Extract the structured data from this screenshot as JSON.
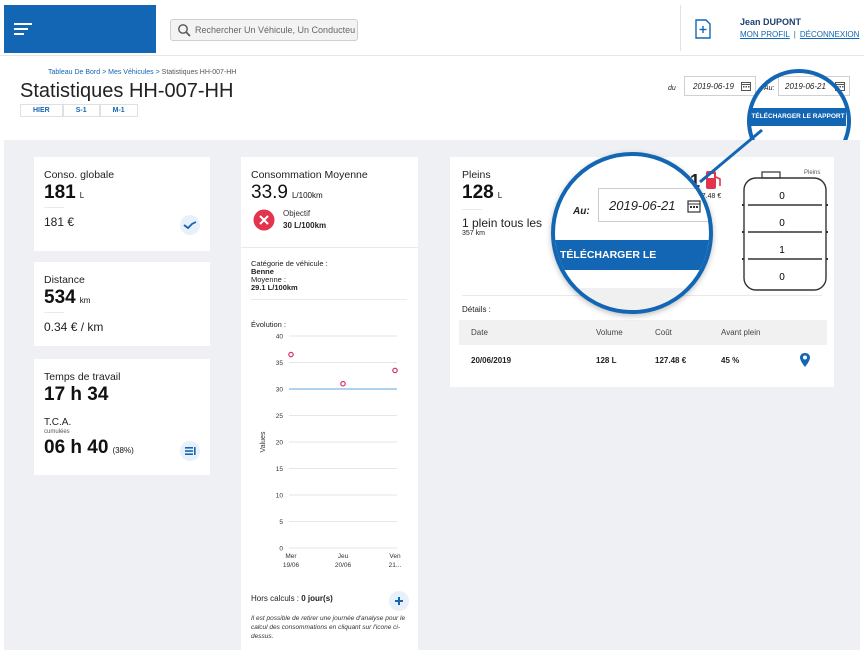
{
  "header": {
    "search_placeholder": "Rechercher Un Véhicule, Un Conducteur",
    "user_name": "Jean DUPONT",
    "profile_link": "MON PROFIL",
    "separator": "|",
    "logout_link": "DÉCONNEXION"
  },
  "breadcrumb": {
    "home": "Tableau De Bord",
    "sep1": " > ",
    "vehicles": "Mes Véhicules",
    "sep2": " > ",
    "current": "Statistiques HH-007-HH"
  },
  "page_title": "Statistiques HH-007-HH",
  "period_tabs": [
    "HIER",
    "S-1",
    "M-1"
  ],
  "dates": {
    "from_label": "du",
    "from_value": "2019-06-19",
    "to_label": "Au:",
    "to_value": "2019-06-21"
  },
  "download_label": "TÉLÉCHARGER LE RAPPORT",
  "conso": {
    "title": "Conso. globale",
    "value": "181",
    "unit": "L",
    "cost": "181 €"
  },
  "distance": {
    "title": "Distance",
    "value": "534",
    "unit": "km",
    "cost_per_km": "0.34 € / km"
  },
  "temps": {
    "title": "Temps de travail",
    "value": "17 h 34",
    "tca_label": "T.C.A.",
    "tca_sub": "cumulées",
    "tca_value": "06 h 40",
    "tca_pct": "(38%)"
  },
  "moyenne": {
    "title": "Consommation Moyenne",
    "value": "33.9",
    "unit": "L/100km",
    "objective_label": "Objectif",
    "objective_value": "30 L/100km",
    "category_label": "Catégorie de véhicule :",
    "category_value": "Benne",
    "avg_label": "Moyenne :",
    "avg_value": "29.1 L/100km",
    "evolution_label": "Évolution :",
    "hors_calculs_label": "Hors calculs :",
    "hors_calculs_value": "0 jour(s)",
    "note": "Il est possible de retirer une journée d'analyse pour le calcul des consommations en cliquant sur l'icone ci-dessus."
  },
  "chart_data": {
    "type": "scatter",
    "categories": [
      "Mer 19/06",
      "Jeu 20/06",
      "Ven 21..."
    ],
    "x_ticks": [
      {
        "day": "Mer",
        "date": "19/06"
      },
      {
        "day": "Jeu",
        "date": "20/06"
      },
      {
        "day": "Ven",
        "date": "21..."
      }
    ],
    "values": [
      36.5,
      31,
      33.5
    ],
    "objective": 30,
    "ylabel": "Values",
    "ylim": [
      0,
      40
    ],
    "yticks": [
      0,
      5,
      10,
      15,
      20,
      25,
      30,
      35,
      40
    ],
    "point_color": "#d9306b",
    "line_color": "#7fb8e6"
  },
  "pleins": {
    "title": "Pleins",
    "value": "128",
    "unit": "L",
    "frequency": "1 plein tous les",
    "frequency_km": "357 km",
    "partial_count": "1",
    "partial_cost": "127.48 €",
    "tank_label": "Pleins",
    "tank_levels": [
      "0",
      "0",
      "1",
      "0"
    ],
    "details_label": "Détails :",
    "columns": [
      "Date",
      "Volume",
      "Coût",
      "Avant plein"
    ],
    "rows": [
      {
        "date": "20/06/2019",
        "volume": "128 L",
        "cost": "127.48 €",
        "before": "45 %"
      }
    ]
  },
  "magnifier": {
    "label": "Au:",
    "date": "2019-06-21",
    "button": "TÉLÉCHARGER LE RAPPORT"
  },
  "colors": {
    "brand": "#1366b3",
    "danger": "#e3344d",
    "chart_point": "#d9306b"
  }
}
